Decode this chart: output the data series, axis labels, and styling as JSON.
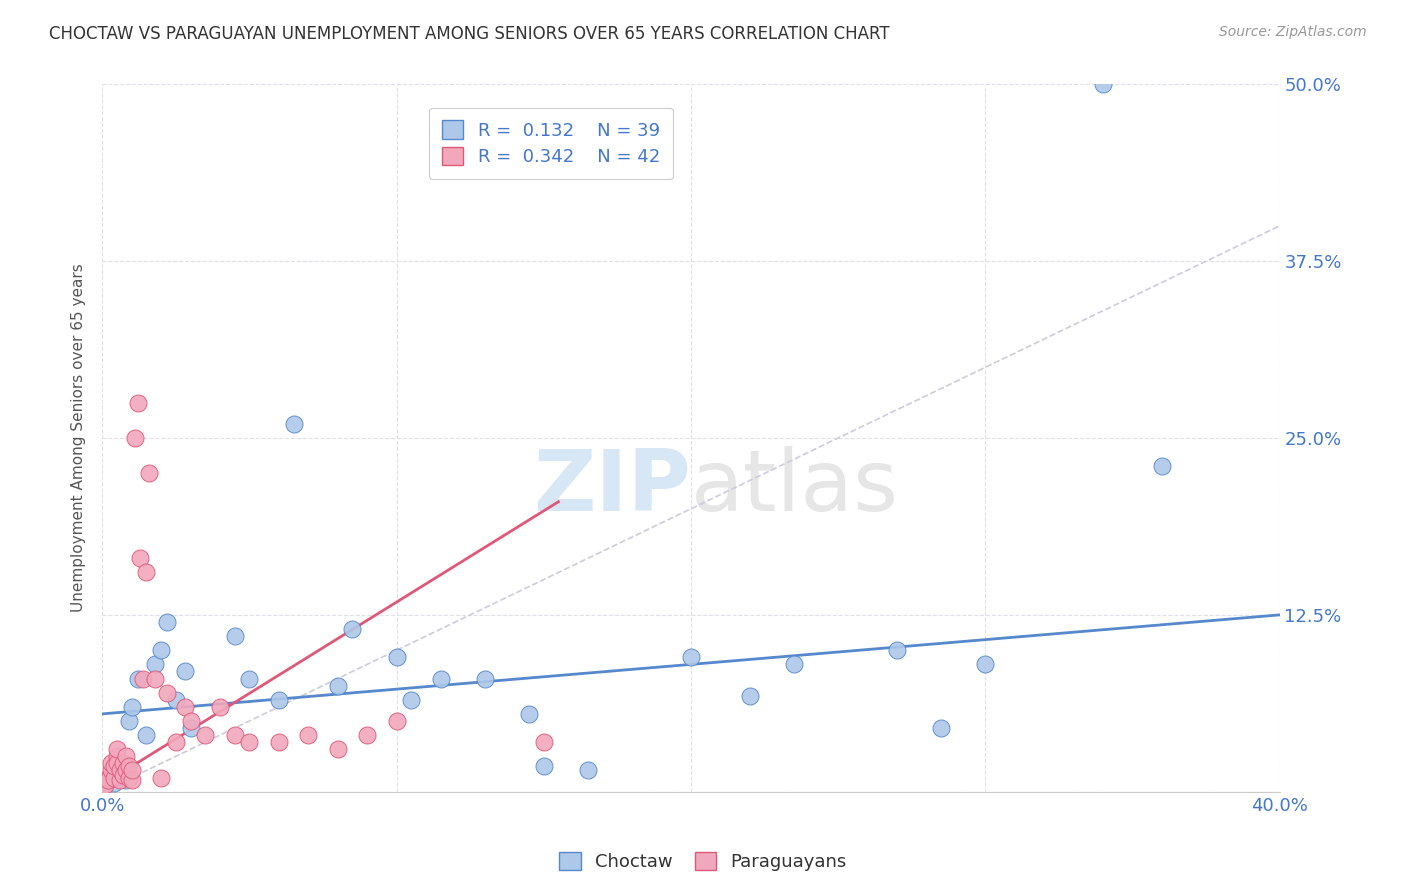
{
  "title": "CHOCTAW VS PARAGUAYAN UNEMPLOYMENT AMONG SENIORS OVER 65 YEARS CORRELATION CHART",
  "source": "Source: ZipAtlas.com",
  "ylabel": "Unemployment Among Seniors over 65 years",
  "xlim": [
    0.0,
    0.4
  ],
  "ylim": [
    0.0,
    0.5
  ],
  "xtick_positions": [
    0.0,
    0.1,
    0.2,
    0.3,
    0.4
  ],
  "xtick_labels": [
    "0.0%",
    "",
    "",
    "",
    "40.0%"
  ],
  "ytick_positions": [
    0.0,
    0.125,
    0.25,
    0.375,
    0.5
  ],
  "ytick_labels": [
    "",
    "12.5%",
    "25.0%",
    "37.5%",
    "50.0%"
  ],
  "choctaw_color": "#adc8e8",
  "paraguayan_color": "#f2a8bc",
  "choctaw_line_color": "#5588cc",
  "paraguayan_line_color": "#e05878",
  "diagonal_color": "#ccccdd",
  "legend_R_choctaw": "0.132",
  "legend_N_choctaw": "39",
  "legend_R_paraguayan": "0.342",
  "legend_N_paraguayan": "42",
  "choctaw_x": [
    0.001,
    0.002,
    0.003,
    0.004,
    0.005,
    0.006,
    0.007,
    0.008,
    0.009,
    0.01,
    0.012,
    0.015,
    0.018,
    0.02,
    0.022,
    0.025,
    0.028,
    0.03,
    0.045,
    0.05,
    0.06,
    0.065,
    0.08,
    0.085,
    0.1,
    0.105,
    0.115,
    0.13,
    0.145,
    0.15,
    0.165,
    0.2,
    0.22,
    0.235,
    0.27,
    0.285,
    0.3,
    0.34,
    0.36
  ],
  "choctaw_y": [
    0.005,
    0.008,
    0.01,
    0.006,
    0.012,
    0.01,
    0.015,
    0.008,
    0.05,
    0.06,
    0.08,
    0.04,
    0.09,
    0.1,
    0.12,
    0.065,
    0.085,
    0.045,
    0.11,
    0.08,
    0.065,
    0.26,
    0.075,
    0.115,
    0.095,
    0.065,
    0.08,
    0.08,
    0.055,
    0.018,
    0.015,
    0.095,
    0.068,
    0.09,
    0.1,
    0.045,
    0.09,
    0.5,
    0.23
  ],
  "paraguayan_x": [
    0.001,
    0.002,
    0.002,
    0.003,
    0.003,
    0.004,
    0.004,
    0.005,
    0.005,
    0.005,
    0.006,
    0.006,
    0.007,
    0.007,
    0.008,
    0.008,
    0.009,
    0.009,
    0.01,
    0.01,
    0.011,
    0.012,
    0.013,
    0.014,
    0.015,
    0.016,
    0.018,
    0.02,
    0.022,
    0.025,
    0.028,
    0.03,
    0.035,
    0.04,
    0.045,
    0.05,
    0.06,
    0.07,
    0.08,
    0.09,
    0.1,
    0.15
  ],
  "paraguayan_y": [
    0.005,
    0.01,
    0.008,
    0.015,
    0.02,
    0.01,
    0.018,
    0.025,
    0.02,
    0.03,
    0.008,
    0.015,
    0.02,
    0.012,
    0.025,
    0.015,
    0.01,
    0.018,
    0.008,
    0.015,
    0.25,
    0.275,
    0.165,
    0.08,
    0.155,
    0.225,
    0.08,
    0.01,
    0.07,
    0.035,
    0.06,
    0.05,
    0.04,
    0.06,
    0.04,
    0.035,
    0.035,
    0.04,
    0.03,
    0.04,
    0.05,
    0.035
  ],
  "choctaw_trend_x": [
    0.0,
    0.4
  ],
  "choctaw_trend_y": [
    0.055,
    0.125
  ],
  "paraguayan_trend_x": [
    0.0,
    0.155
  ],
  "paraguayan_trend_y": [
    0.005,
    0.205
  ],
  "watermark": "ZIPatlas",
  "background_color": "#ffffff",
  "grid_color": "#e0e0e8"
}
